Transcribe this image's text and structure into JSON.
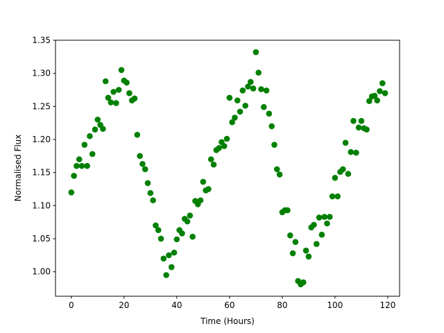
{
  "chart_data": {
    "type": "scatter",
    "x_label": "Time (Hours)",
    "y_label": "Normalised Flux",
    "series": [
      {
        "color": "#008000",
        "x": [
          0,
          1,
          2,
          3,
          4,
          5,
          6,
          7,
          8,
          9,
          10,
          11,
          12,
          13,
          14,
          15,
          16,
          17,
          18,
          19,
          20,
          21,
          22,
          23,
          24,
          25,
          26,
          27,
          28,
          29,
          30,
          31,
          32,
          33,
          34,
          35,
          36,
          37,
          38,
          39,
          40,
          41,
          42,
          43,
          44,
          45,
          46,
          47,
          48,
          49,
          50,
          51,
          52,
          53,
          54,
          55,
          56,
          57,
          58,
          59,
          60,
          61,
          62,
          63,
          64,
          65,
          66,
          67,
          68,
          69,
          70,
          71,
          72,
          73,
          74,
          75,
          76,
          77,
          78,
          79,
          80,
          81,
          82,
          83,
          84,
          85,
          86,
          87,
          88,
          89,
          90,
          91,
          92,
          93,
          94,
          95,
          96,
          97,
          98,
          99,
          100,
          101,
          102,
          103,
          104,
          105,
          106,
          107,
          108,
          109,
          110,
          111,
          112,
          113,
          114,
          115,
          116,
          117,
          118,
          119
        ],
        "values": [
          1.12,
          1.145,
          1.16,
          1.17,
          1.16,
          1.192,
          1.16,
          1.205,
          1.178,
          1.215,
          1.23,
          1.222,
          1.216,
          1.288,
          1.263,
          1.256,
          1.272,
          1.255,
          1.275,
          1.305,
          1.289,
          1.286,
          1.27,
          1.259,
          1.262,
          1.207,
          1.175,
          1.163,
          1.155,
          1.134,
          1.119,
          1.108,
          1.07,
          1.063,
          1.05,
          1.02,
          0.995,
          1.025,
          1.007,
          1.029,
          1.049,
          1.063,
          1.058,
          1.08,
          1.076,
          1.085,
          1.053,
          1.107,
          1.102,
          1.108,
          1.136,
          1.123,
          1.125,
          1.17,
          1.162,
          1.184,
          1.187,
          1.196,
          1.19,
          1.201,
          1.263,
          1.226,
          1.233,
          1.259,
          1.242,
          1.274,
          1.251,
          1.28,
          1.287,
          1.277,
          1.332,
          1.301,
          1.276,
          1.249,
          1.274,
          1.239,
          1.22,
          1.192,
          1.155,
          1.147,
          1.09,
          1.093,
          1.093,
          1.055,
          1.028,
          1.045,
          0.986,
          0.981,
          0.984,
          1.032,
          1.023,
          1.067,
          1.071,
          1.042,
          1.082,
          1.056,
          1.083,
          1.073,
          1.083,
          1.114,
          1.142,
          1.114,
          1.151,
          1.155,
          1.195,
          1.148,
          1.181,
          1.228,
          1.18,
          1.218,
          1.228,
          1.217,
          1.215,
          1.258,
          1.265,
          1.266,
          1.259,
          1.273,
          1.285,
          1.27
        ]
      }
    ],
    "xlim": [
      -6,
      124.5
    ],
    "ylim": [
      0.963,
      1.35
    ],
    "xticks": [
      0,
      20,
      40,
      60,
      80,
      100,
      120
    ],
    "yticks": [
      {
        "value": 1.0,
        "label": "1.00"
      },
      {
        "value": 1.05,
        "label": "1.05"
      },
      {
        "value": 1.1,
        "label": "1.10"
      },
      {
        "value": 1.15,
        "label": "1.15"
      },
      {
        "value": 1.2,
        "label": "1.20"
      },
      {
        "value": 1.25,
        "label": "1.25"
      },
      {
        "value": 1.3,
        "label": "1.30"
      },
      {
        "value": 1.35,
        "label": "1.35"
      }
    ]
  }
}
